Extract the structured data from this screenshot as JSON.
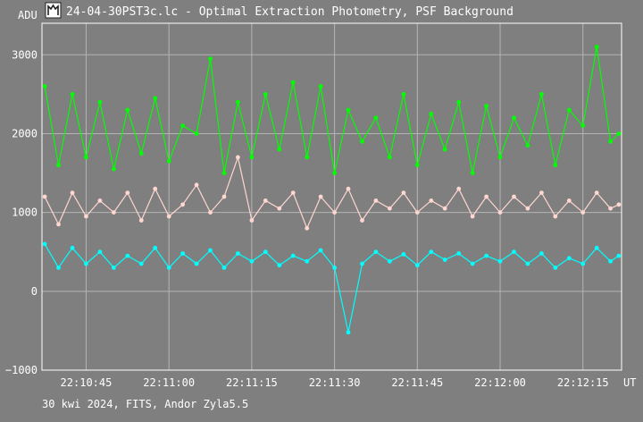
{
  "window": {
    "title": "24-04-30PST3c.lc - Optimal Extraction Photometry, PSF Background",
    "icon": "chart-window-icon"
  },
  "footer": "30 kwi 2024, FITS, Andor Zyla5.5",
  "colors": {
    "background": "#7f7f7f",
    "grid": "#b4b4b4",
    "text": "#ffffff",
    "frame": "#ffffff",
    "series_green": "#00ff00",
    "series_pink": "#ffd6d0",
    "series_cyan": "#00ffff"
  },
  "chart_data": {
    "type": "line",
    "ylabel": "ADU",
    "xunit": "UT",
    "ylim": [
      -1000,
      3400
    ],
    "xlim": [
      "22:10:37",
      "22:12:22"
    ],
    "yticks": [
      {
        "value": 3000,
        "label": "3000"
      },
      {
        "value": 2000,
        "label": "2000"
      },
      {
        "value": 1000,
        "label": "1000"
      },
      {
        "value": 0,
        "label": "0"
      },
      {
        "value": -1000,
        "label": "−1000"
      }
    ],
    "xticks": [
      {
        "value": "22:10:45",
        "label": "22:10:45"
      },
      {
        "value": "22:11:00",
        "label": "22:11:00"
      },
      {
        "value": "22:11:15",
        "label": "22:11:15"
      },
      {
        "value": "22:11:30",
        "label": "22:11:30"
      },
      {
        "value": "22:11:45",
        "label": "22:11:45"
      },
      {
        "value": "22:12:00",
        "label": "22:12:00"
      },
      {
        "value": "22:12:15",
        "label": "22:12:15"
      }
    ],
    "grid": true,
    "series": [
      {
        "color": "#00ff00",
        "x": [
          "22:10:37.5",
          "22:10:40",
          "22:10:42.5",
          "22:10:45",
          "22:10:47.5",
          "22:10:50",
          "22:10:52.5",
          "22:10:55",
          "22:10:57.5",
          "22:11:00",
          "22:11:02.5",
          "22:11:05",
          "22:11:07.5",
          "22:11:10",
          "22:11:12.5",
          "22:11:15",
          "22:11:17.5",
          "22:11:20",
          "22:11:22.5",
          "22:11:25",
          "22:11:27.5",
          "22:11:30",
          "22:11:32.5",
          "22:11:35",
          "22:11:37.5",
          "22:11:40",
          "22:11:42.5",
          "22:11:45",
          "22:11:47.5",
          "22:11:50",
          "22:11:52.5",
          "22:11:55",
          "22:11:57.5",
          "22:12:00",
          "22:12:02.5",
          "22:12:05",
          "22:12:07.5",
          "22:12:10",
          "22:12:12.5",
          "22:12:15",
          "22:12:17.5",
          "22:12:20",
          "22:12:21.5"
        ],
        "y": [
          2600,
          1600,
          2500,
          1700,
          2400,
          1550,
          2300,
          1750,
          2450,
          1650,
          2100,
          2000,
          2950,
          1500,
          2400,
          1700,
          2500,
          1800,
          2650,
          1700,
          2600,
          1500,
          2300,
          1900,
          2200,
          1700,
          2500,
          1600,
          2250,
          1800,
          2400,
          1500,
          2350,
          1700,
          2200,
          1850,
          2500,
          1600,
          2300,
          2100,
          3100,
          1900,
          2000
        ]
      },
      {
        "color": "#ffd6d0",
        "x": [
          "22:10:37.5",
          "22:10:40",
          "22:10:42.5",
          "22:10:45",
          "22:10:47.5",
          "22:10:50",
          "22:10:52.5",
          "22:10:55",
          "22:10:57.5",
          "22:11:00",
          "22:11:02.5",
          "22:11:05",
          "22:11:07.5",
          "22:11:10",
          "22:11:12.5",
          "22:11:15",
          "22:11:17.5",
          "22:11:20",
          "22:11:22.5",
          "22:11:25",
          "22:11:27.5",
          "22:11:30",
          "22:11:32.5",
          "22:11:35",
          "22:11:37.5",
          "22:11:40",
          "22:11:42.5",
          "22:11:45",
          "22:11:47.5",
          "22:11:50",
          "22:11:52.5",
          "22:11:55",
          "22:11:57.5",
          "22:12:00",
          "22:12:02.5",
          "22:12:05",
          "22:12:07.5",
          "22:12:10",
          "22:12:12.5",
          "22:12:15",
          "22:12:17.5",
          "22:12:20",
          "22:12:21.5"
        ],
        "y": [
          1200,
          850,
          1250,
          950,
          1150,
          1000,
          1250,
          900,
          1300,
          950,
          1100,
          1350,
          1000,
          1200,
          1700,
          900,
          1150,
          1050,
          1250,
          800,
          1200,
          1000,
          1300,
          900,
          1150,
          1050,
          1250,
          1000,
          1150,
          1050,
          1300,
          950,
          1200,
          1000,
          1200,
          1050,
          1250,
          950,
          1150,
          1000,
          1250,
          1050,
          1100
        ]
      },
      {
        "color": "#00ffff",
        "x": [
          "22:10:37.5",
          "22:10:40",
          "22:10:42.5",
          "22:10:45",
          "22:10:47.5",
          "22:10:50",
          "22:10:52.5",
          "22:10:55",
          "22:10:57.5",
          "22:11:00",
          "22:11:02.5",
          "22:11:05",
          "22:11:07.5",
          "22:11:10",
          "22:11:12.5",
          "22:11:15",
          "22:11:17.5",
          "22:11:20",
          "22:11:22.5",
          "22:11:25",
          "22:11:27.5",
          "22:11:30",
          "22:11:32.5",
          "22:11:35",
          "22:11:37.5",
          "22:11:40",
          "22:11:42.5",
          "22:11:45",
          "22:11:47.5",
          "22:11:50",
          "22:11:52.5",
          "22:11:55",
          "22:11:57.5",
          "22:12:00",
          "22:12:02.5",
          "22:12:05",
          "22:12:07.5",
          "22:12:10",
          "22:12:12.5",
          "22:12:15",
          "22:12:17.5",
          "22:12:20",
          "22:12:21.5"
        ],
        "y": [
          600,
          300,
          550,
          350,
          500,
          300,
          450,
          350,
          550,
          300,
          480,
          350,
          520,
          300,
          480,
          380,
          500,
          330,
          450,
          380,
          520,
          300,
          -520,
          350,
          500,
          380,
          470,
          330,
          500,
          400,
          480,
          350,
          450,
          380,
          500,
          350,
          480,
          300,
          420,
          350,
          550,
          380,
          450
        ]
      }
    ]
  }
}
